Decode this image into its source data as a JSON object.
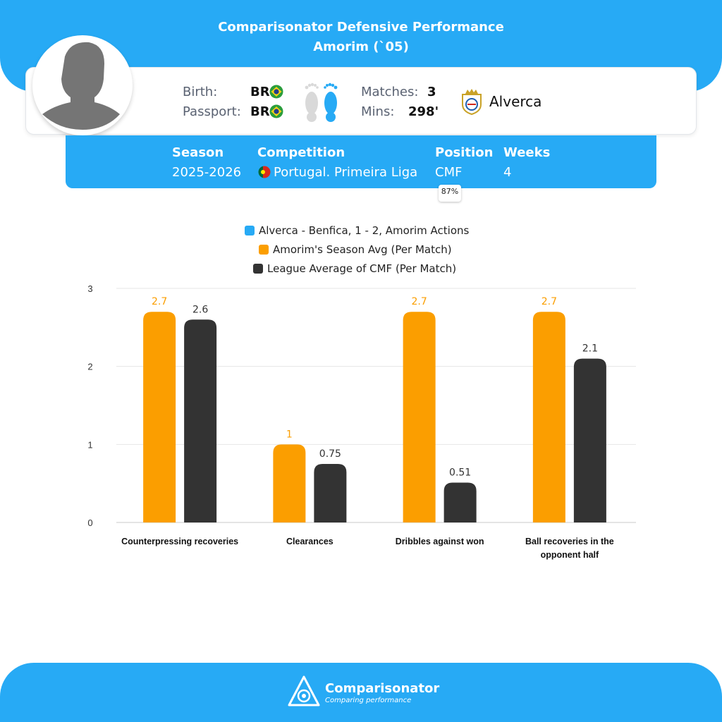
{
  "header": {
    "title": "Comparisonator Defensive Performance",
    "player": "Amorim (`05)"
  },
  "player_info": {
    "birth_label": "Birth:",
    "birth_value": "BR",
    "passport_label": "Passport:",
    "passport_value": "BR",
    "foot_icon": "feet-icon",
    "matches_label": "Matches:",
    "matches_value": "3",
    "mins_label": "Mins:",
    "mins_value": "298'",
    "club": "Alverca"
  },
  "season_bar": {
    "season_label": "Season",
    "season_value": "2025-2026",
    "competition_label": "Competition",
    "competition_value": "Portugal. Primeira Liga",
    "position_label": "Position",
    "position_value": "CMF",
    "position_pct": "87%",
    "weeks_label": "Weeks",
    "weeks_value": "4"
  },
  "colors": {
    "brand": "#27aaf5",
    "season_avg": "#fb9e00",
    "league_avg": "#333333",
    "match": "#27aaf5"
  },
  "chart_data": {
    "type": "bar",
    "categories": [
      "Counterpressing recoveries",
      "Clearances",
      "Dribbles against won",
      "Ball recoveries in the opponent half"
    ],
    "category_lines": [
      [
        "Counterpressing recoveries"
      ],
      [
        "Clearances"
      ],
      [
        "Dribbles against won"
      ],
      [
        "Ball recoveries in the",
        "opponent half"
      ]
    ],
    "series": [
      {
        "name": "Alverca - Benfica, 1 - 2, Amorim Actions",
        "color": "#27aaf5",
        "values": [
          0,
          0,
          0,
          0
        ],
        "labels": [
          "",
          "",
          "",
          ""
        ]
      },
      {
        "name": "Amorim's Season Avg (Per Match)",
        "color": "#fb9e00",
        "values": [
          2.7,
          1,
          2.7,
          2.7
        ],
        "labels": [
          "2.7",
          "1",
          "2.7",
          "2.7"
        ]
      },
      {
        "name": "League Average of CMF (Per Match)",
        "color": "#333333",
        "values": [
          2.6,
          0.75,
          0.51,
          2.1
        ],
        "labels": [
          "2.6",
          "0.75",
          "0.51",
          "2.1"
        ]
      }
    ],
    "yticks": [
      "0",
      "1",
      "2",
      "3"
    ],
    "ylim": [
      0,
      3
    ],
    "grid": true,
    "legend_position": "top-center"
  },
  "footer": {
    "brand": "Comparisonator",
    "tagline": "Comparing performance"
  }
}
